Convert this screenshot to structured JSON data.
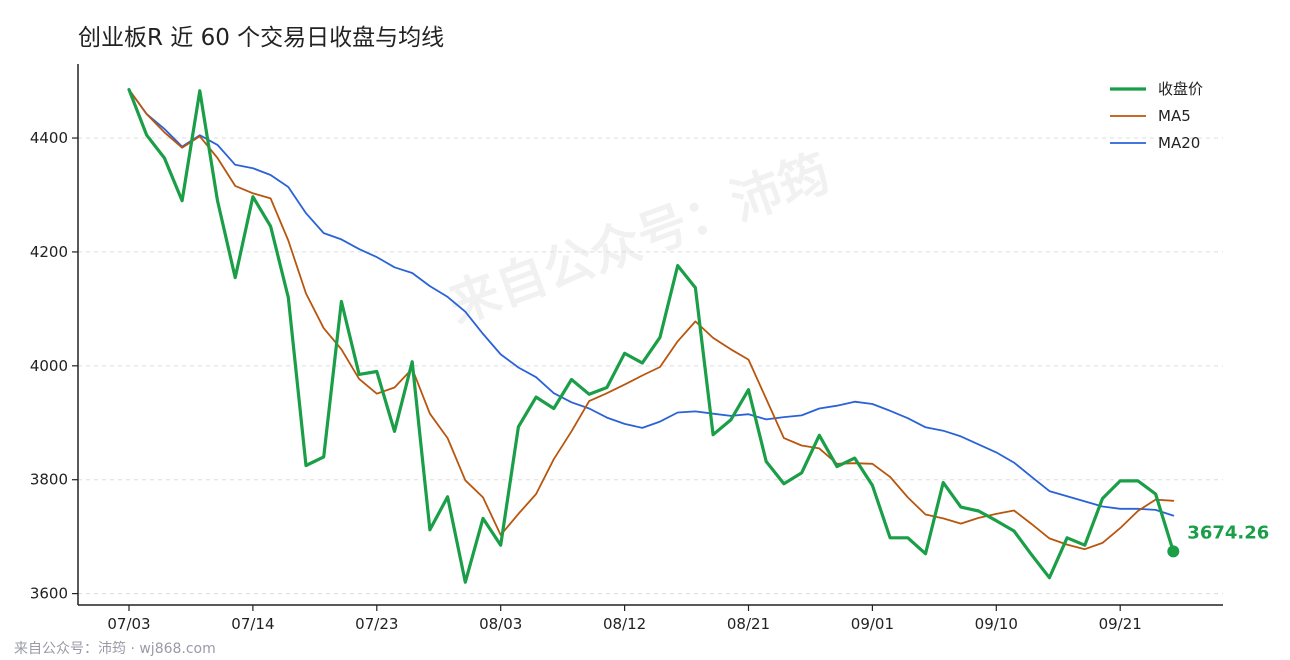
{
  "chart_data": {
    "type": "line",
    "title": "创业板R 近 60 个交易日收盘与均线",
    "x_tick_labels": [
      "07/03",
      "07/14",
      "07/23",
      "08/03",
      "08/12",
      "08/21",
      "09/01",
      "09/10",
      "09/21"
    ],
    "x_tick_index": [
      0,
      7,
      14,
      21,
      28,
      35,
      42,
      49,
      56
    ],
    "y_ticks": [
      3600,
      3800,
      4000,
      4200,
      4400
    ],
    "ylim": [
      3580,
      4530
    ],
    "grid": "horizontal dashed",
    "legend_position": "top-right",
    "series": [
      {
        "name": "收盘价",
        "color": "#1a9e47",
        "values": [
          4485,
          4405,
          4365,
          4290,
          4483,
          4290,
          4155,
          4297,
          4245,
          4120,
          3825,
          3840,
          4113,
          3985,
          3990,
          3885,
          4007,
          3712,
          3770,
          3620,
          3732,
          3685,
          3893,
          3945,
          3925,
          3976,
          3950,
          3962,
          4022,
          4005,
          4050,
          4176,
          4137,
          3879,
          3905,
          3958,
          3832,
          3793,
          3812,
          3878,
          3823,
          3838,
          3790,
          3698,
          3698,
          3670,
          3795,
          3752,
          3745,
          3728,
          3710,
          3668,
          3628,
          3698,
          3685,
          3767,
          3798,
          3798,
          3775,
          3674.26
        ]
      },
      {
        "name": "MA5",
        "color": "#b8560e",
        "values": [
          4485,
          4442,
          4410,
          4383,
          4403,
          4365,
          4316,
          4303,
          4294,
          4220,
          4127,
          4066,
          4029,
          3977,
          3951,
          3962,
          3995,
          3916,
          3873,
          3799,
          3769,
          3703,
          3740,
          3775,
          3836,
          3885,
          3938,
          3952,
          3967,
          3983,
          3998,
          4043,
          4078,
          4049,
          4029,
          4011,
          3942,
          3873,
          3860,
          3855,
          3828,
          3829,
          3828,
          3805,
          3769,
          3739,
          3732,
          3723,
          3733,
          3740,
          3746,
          3722,
          3697,
          3686,
          3678,
          3689,
          3715,
          3745,
          3765,
          3763
        ]
      },
      {
        "name": "MA20",
        "color": "#2a62d8",
        "values": [
          4485,
          4442,
          4416,
          4385,
          4405,
          4388,
          4353,
          4347,
          4335,
          4314,
          4268,
          4233,
          4222,
          4205,
          4191,
          4173,
          4163,
          4140,
          4121,
          4095,
          4056,
          4020,
          3997,
          3980,
          3952,
          3936,
          3925,
          3909,
          3898,
          3891,
          3902,
          3918,
          3920,
          3916,
          3912,
          3915,
          3906,
          3910,
          3913,
          3925,
          3930,
          3937,
          3933,
          3921,
          3908,
          3892,
          3886,
          3876,
          3862,
          3848,
          3830,
          3805,
          3780,
          3771,
          3762,
          3753,
          3749,
          3749,
          3747,
          3737
        ]
      }
    ],
    "end_label": "3674.26"
  },
  "watermark": "来自公众号：沛筠",
  "footer": "来自公众号：沛筠 · wj868.com"
}
